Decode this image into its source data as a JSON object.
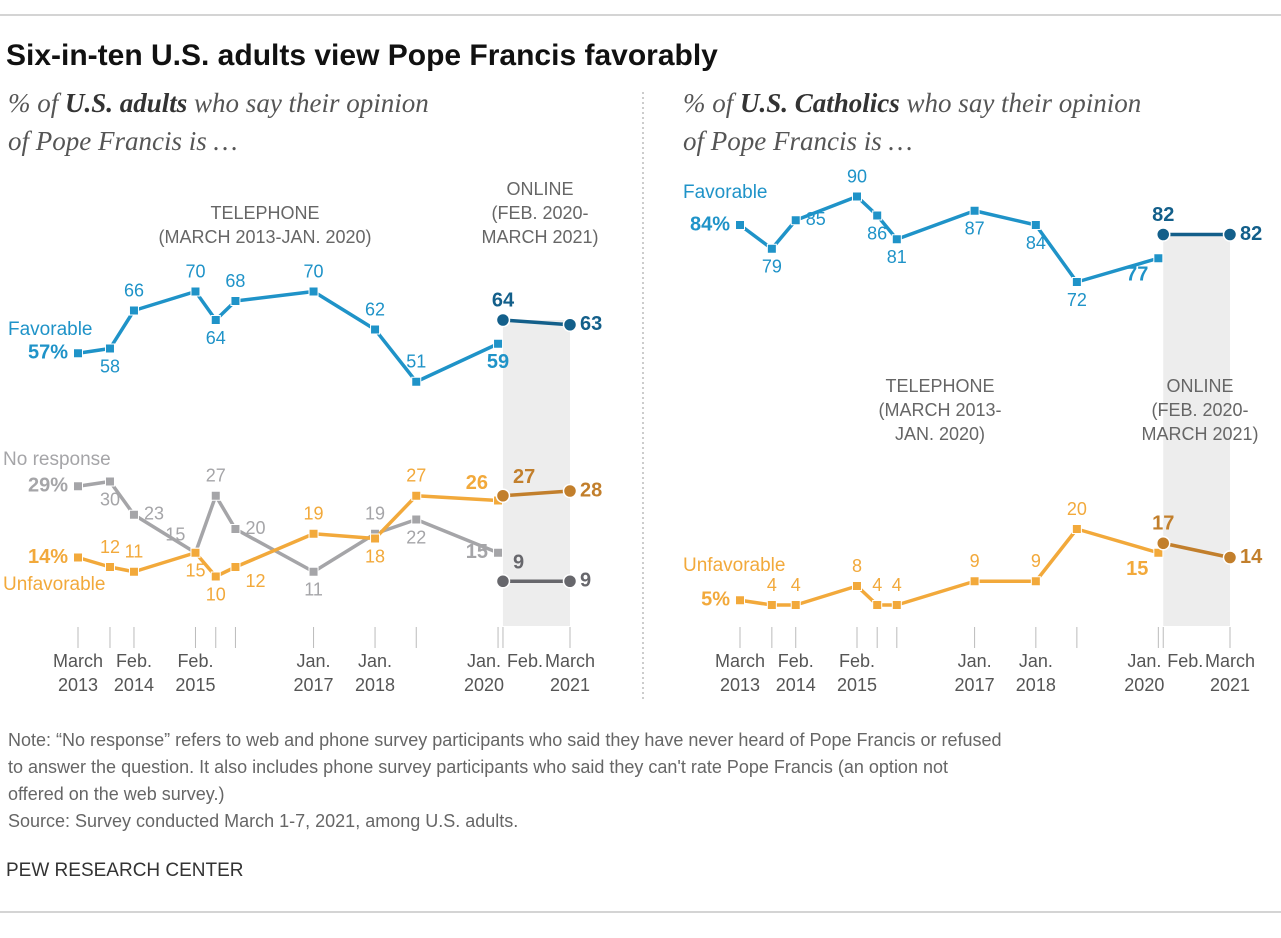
{
  "header": {
    "title": "Six-in-ten U.S. adults view Pope Francis favorably"
  },
  "chart_data": [
    {
      "type": "line",
      "subtitle_lines": [
        [
          "% of ",
          "U.S. adults",
          " who say their opinion"
        ],
        [
          "of Pope Francis is …"
        ]
      ],
      "telephone_note": [
        "TELEPHONE",
        "(MARCH 2013-JAN. 2020)"
      ],
      "online_note": [
        "ONLINE",
        "(FEB. 2020-",
        "MARCH 2021)"
      ],
      "x": [
        2013.17,
        2013.69,
        2014.08,
        2015.08,
        2015.41,
        2015.73,
        2017.0,
        2018.0,
        2018.67,
        2020.0,
        2020.08,
        2021.17
      ],
      "xlim": [
        2013.17,
        2021.17
      ],
      "xticks": [
        {
          "value": 2013.17,
          "label": "March 2013"
        },
        {
          "value": 2014.08,
          "label": "Feb. 2014"
        },
        {
          "value": 2015.08,
          "label": "Feb. 2015"
        },
        {
          "value": 2017.0,
          "label": "Jan. 2017"
        },
        {
          "value": 2018.0,
          "label": "Jan. 2018"
        },
        {
          "value": 2020.0,
          "label": "Jan. 2020"
        },
        {
          "value": 2020.08,
          "label": "Feb."
        },
        {
          "value": 2021.17,
          "label": "March 2021"
        }
      ],
      "ylim": [
        0,
        100
      ],
      "series": [
        {
          "name": "Favorable",
          "color": "#1f93c8",
          "values": [
            57,
            58,
            66,
            70,
            64,
            68,
            70,
            62,
            51,
            59,
            null,
            null
          ],
          "value_labels": [
            "57%",
            "58",
            "66",
            "70",
            "64",
            "68",
            "70",
            "62",
            "51",
            "59",
            null,
            null
          ]
        },
        {
          "color": "#135f8a",
          "values": [
            null,
            null,
            null,
            null,
            null,
            null,
            null,
            null,
            null,
            null,
            64,
            63
          ]
        },
        {
          "name": "No response",
          "color": "#a5a5a8",
          "values": [
            29,
            30,
            23,
            15,
            27,
            20,
            11,
            19,
            22,
            15,
            null,
            null
          ],
          "value_labels": [
            "29%",
            "30",
            "23",
            "15",
            "27",
            "20",
            "11",
            "19",
            "22",
            "15",
            null,
            null
          ]
        },
        {
          "color": "#67676c",
          "values": [
            null,
            null,
            null,
            null,
            null,
            null,
            null,
            null,
            null,
            null,
            9,
            9
          ]
        },
        {
          "name": "Unfavorable",
          "color": "#f2a93b",
          "values": [
            14,
            12,
            11,
            15,
            10,
            12,
            19,
            18,
            27,
            26,
            null,
            null
          ],
          "value_labels": [
            "14%",
            "12",
            "11",
            "15",
            "10",
            "12",
            "19",
            "18",
            "27",
            "26",
            null,
            null
          ]
        },
        {
          "color": "#c27f2c",
          "values": [
            null,
            null,
            null,
            null,
            null,
            null,
            null,
            null,
            null,
            null,
            27,
            28
          ]
        }
      ]
    },
    {
      "type": "line",
      "subtitle_lines": [
        [
          "% of ",
          "U.S. Catholics",
          " who say their opinion"
        ],
        [
          "of Pope Francis is …"
        ]
      ],
      "telephone_note": [
        "TELEPHONE",
        "(MARCH 2013-",
        "JAN. 2020)"
      ],
      "online_note": [
        "ONLINE",
        "(FEB. 2020-",
        "MARCH 2021)"
      ],
      "x": [
        2013.17,
        2013.69,
        2014.08,
        2015.08,
        2015.41,
        2015.73,
        2017.0,
        2018.0,
        2018.67,
        2020.0,
        2020.08,
        2021.17
      ],
      "xlim": [
        2013.17,
        2021.17
      ],
      "xticks": [
        {
          "value": 2013.17,
          "label": "March 2013"
        },
        {
          "value": 2014.08,
          "label": "Feb. 2014"
        },
        {
          "value": 2015.08,
          "label": "Feb. 2015"
        },
        {
          "value": 2017.0,
          "label": "Jan. 2017"
        },
        {
          "value": 2018.0,
          "label": "Jan. 2018"
        },
        {
          "value": 2020.0,
          "label": "Jan. 2020"
        },
        {
          "value": 2020.08,
          "label": "Feb."
        },
        {
          "value": 2021.17,
          "label": "March 2021"
        }
      ],
      "ylim": [
        0,
        100
      ],
      "series": [
        {
          "name": "Favorable",
          "color": "#1f93c8",
          "values": [
            84,
            79,
            85,
            90,
            86,
            81,
            87,
            84,
            72,
            77,
            null,
            null
          ],
          "value_labels": [
            "84%",
            "79",
            "85",
            "90",
            "86",
            "81",
            "87",
            "84",
            "72",
            "77",
            null,
            null
          ]
        },
        {
          "color": "#135f8a",
          "values": [
            null,
            null,
            null,
            null,
            null,
            null,
            null,
            null,
            null,
            null,
            82,
            82
          ]
        },
        {
          "name": "Unfavorable",
          "color": "#f2a93b",
          "values": [
            5,
            4,
            4,
            8,
            4,
            4,
            9,
            9,
            20,
            15,
            null,
            null
          ],
          "value_labels": [
            "5%",
            "4",
            "4",
            "8",
            "4",
            "4",
            "9",
            "9",
            "20",
            "15",
            null,
            null
          ]
        },
        {
          "color": "#c27f2c",
          "values": [
            null,
            null,
            null,
            null,
            null,
            null,
            null,
            null,
            null,
            null,
            17,
            14
          ]
        }
      ]
    }
  ],
  "notes": {
    "note_lines": [
      "Note: “No response” refers to web and phone survey participants who said they have never heard of Pope Francis or refused",
      "to answer the question. It also includes phone survey participants who said they can't rate Pope Francis (an option not",
      "offered on the web survey.)"
    ],
    "source": "Source: Survey conducted March 1-7, 2021, among U.S. adults.",
    "footer": "PEW RESEARCH CENTER"
  }
}
